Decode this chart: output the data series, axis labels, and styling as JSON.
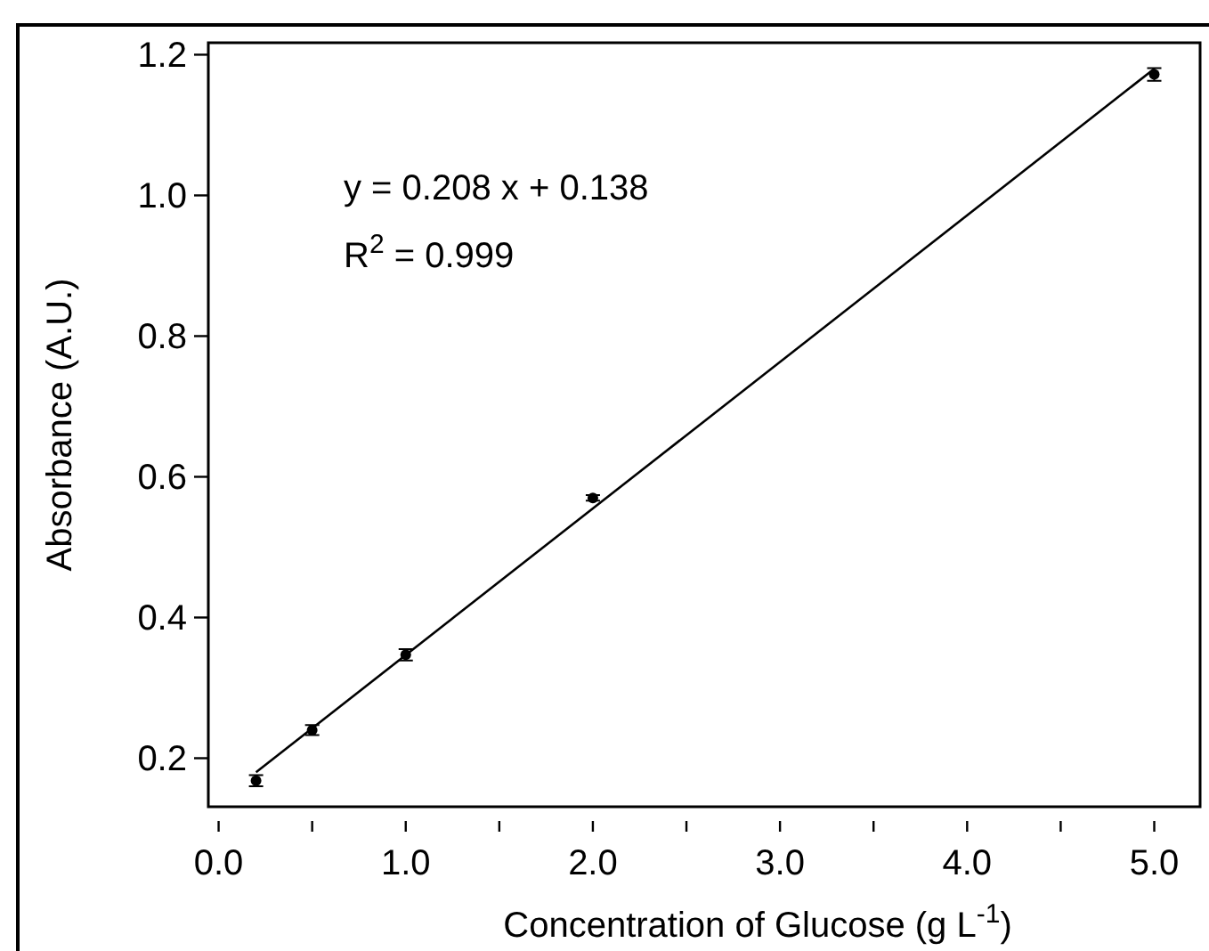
{
  "chart_data": {
    "type": "scatter",
    "xlabel": "Concentration of Glucose (g L$^{-1}$)",
    "ylabel": "Absorbance (A.U.)",
    "annotations": [
      "y = 0.208 x + 0.138",
      "R$^{2}$ = 0.999"
    ],
    "series": [
      {
        "color": "#000000",
        "x": [
          0.2,
          0.5,
          1.0,
          2.0,
          5.0
        ],
        "values": [
          0.168,
          0.24,
          0.347,
          0.57,
          1.172
        ],
        "errors": [
          0.008,
          0.007,
          0.008,
          0.004,
          0.009
        ]
      },
      {
        "type": "line",
        "color": "#000000",
        "x": [
          0.2,
          5.0
        ],
        "values": [
          0.18,
          1.18
        ],
        "line_style": "solid"
      }
    ],
    "xlim": [
      -0.055,
      5.245
    ],
    "ylim": [
      0.131,
      1.217
    ],
    "xticks": [
      {
        "value": 0,
        "label": "0.0"
      },
      {
        "value": 0.5,
        "label": null
      },
      {
        "value": 1,
        "label": "1.0"
      },
      {
        "value": 1.5,
        "label": null
      },
      {
        "value": 2,
        "label": "2.0"
      },
      {
        "value": 2.5,
        "label": null
      },
      {
        "value": 3,
        "label": "3.0"
      },
      {
        "value": 3.5,
        "label": null
      },
      {
        "value": 4,
        "label": "4.0"
      },
      {
        "value": 4.5,
        "label": null
      },
      {
        "value": 5,
        "label": "5.0"
      }
    ],
    "yticks": [
      0.2,
      0.4,
      0.6,
      0.8,
      {
        "value": 1,
        "label": "1.0"
      },
      1.2
    ],
    "grid": false
  }
}
